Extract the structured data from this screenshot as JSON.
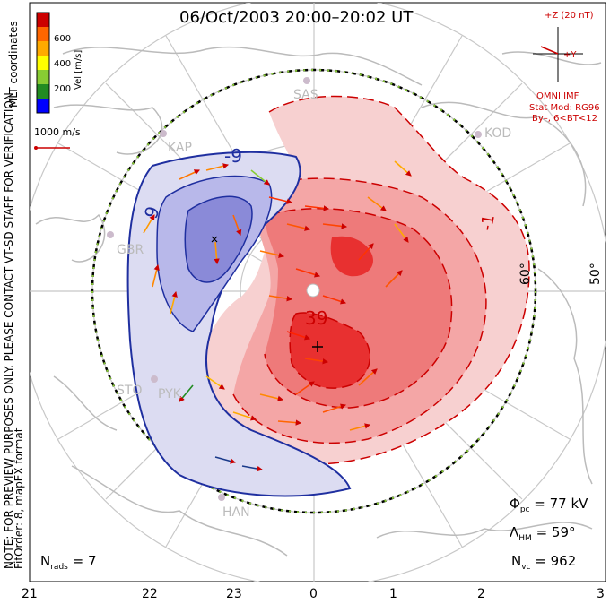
{
  "title": "06/Oct/2003 20:00–20:02 UT",
  "coordinates_label": "MLT coordinates",
  "velocity_scale": {
    "unit_label": "Vel [m/s]",
    "ticks": [
      "600",
      "400",
      "200"
    ],
    "colors": [
      "#cc0000",
      "#ff6600",
      "#ffaa00",
      "#ffff00",
      "#88cc33",
      "#228b22",
      "#0000ff"
    ]
  },
  "reference_vector": "1000 m/s",
  "imf": {
    "z_label": "+Z (20 nT)",
    "y_label": "+Y",
    "source": "OMNI IMF",
    "model": "Stat Mod: RG96",
    "condition": "By–, 6<BT<12"
  },
  "latitude_labels": [
    "60°",
    "50°"
  ],
  "contour_labels": {
    "negative": [
      "-9",
      "9"
    ],
    "positive": [
      "39",
      "-1"
    ]
  },
  "station_labels": [
    "SAS",
    "KOD",
    "KAP",
    "GBR",
    "STO",
    "PYK",
    "HAN"
  ],
  "notes": {
    "preview": "NOTE: FOR PREVIEW PURPOSES ONLY. PLEASE CONTACT VT-SD STAFF FOR VERIFICATION.",
    "fit": "FitOrder: 8, mapEX format"
  },
  "stats": {
    "phi_symbol": "Φ",
    "phi_sub": "pc",
    "phi_value": "= 77 kV",
    "lambda_symbol": "Λ",
    "lambda_sub": "HM",
    "lambda_value": "= 59°",
    "nvc_symbol": "N",
    "nvc_sub": "vc",
    "nvc_value": "= 962",
    "nrads_symbol": "N",
    "nrads_sub": "rads",
    "nrads_value": "= 7"
  },
  "mlt_ticks": [
    "21",
    "22",
    "23",
    "0",
    "1",
    "2",
    "3"
  ],
  "colors": {
    "positive_cell": "#e83030",
    "negative_cell": "#4a4ad8",
    "frame": "#000000",
    "grid": "#c8c8c8",
    "land": "#bbbbbb"
  }
}
